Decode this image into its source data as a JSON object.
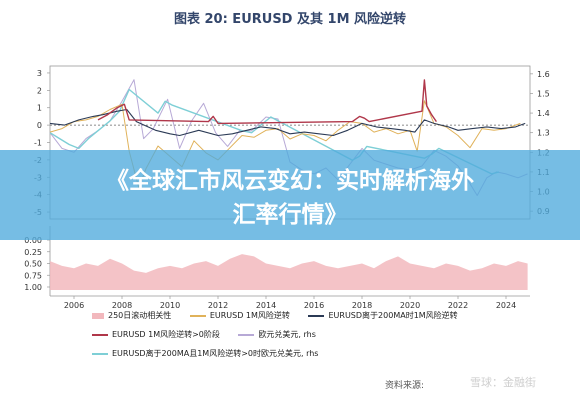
{
  "title": "图表 20: EURUSD 及其 1M 风险逆转",
  "banner": {
    "line1": "《全球汇市风云变幻：实时解析海外",
    "line2": "汇率行情》"
  },
  "legend": [
    {
      "label": "250日滚动相关性",
      "kind": "area",
      "color": "#f2b8bd"
    },
    {
      "label": "EURUSD 1M风险逆转",
      "kind": "line",
      "color": "#e0b25a"
    },
    {
      "label": "EURUSD离于200MA时1M风险逆转",
      "kind": "line",
      "color": "#2b3a55"
    },
    {
      "label": "EURUSD 1M风险逆转>0阶段",
      "kind": "line",
      "color": "#b0374a"
    },
    {
      "label": "欧元兑美元, rhs",
      "kind": "line",
      "color": "#b7a9d6"
    },
    {
      "label": "EURUSD离于200MA且1M风险逆转>0时欧元兑美元, rhs",
      "kind": "line",
      "color": "#7ecfd6"
    }
  ],
  "source": "资料来源:",
  "watermark": "雪球：金融街",
  "chart_data": {
    "type": "line",
    "x_ticks": [
      "2006",
      "2008",
      "2010",
      "2012",
      "2014",
      "2016",
      "2018",
      "2020",
      "2022",
      "2024"
    ],
    "x_range": [
      2005,
      2025
    ],
    "left_axis": {
      "ticks": [
        3,
        2,
        1,
        0,
        -1,
        -2,
        -3,
        -4,
        -5
      ],
      "ylim": [
        -5.4,
        3.4
      ]
    },
    "right_axis": {
      "ticks": [
        1.6,
        1.5,
        1.4,
        1.3,
        1.2,
        1.1,
        1.0,
        0.9
      ],
      "ylim": [
        0.86,
        1.64
      ]
    },
    "lower_axis": {
      "ticks": [
        0.0,
        0.25,
        0.5,
        0.75,
        1.0
      ],
      "ylim": [
        1.0,
        0.0
      ]
    },
    "reference_line": 0,
    "series": [
      {
        "name": "EURUSD 1M风险逆转",
        "axis": "left",
        "x": [
          2005.0,
          2005.5,
          2006.0,
          2006.5,
          2007.0,
          2007.5,
          2008.0,
          2008.3,
          2008.7,
          2009.0,
          2009.5,
          2010.0,
          2010.5,
          2011.0,
          2011.5,
          2012.0,
          2012.5,
          2013.0,
          2013.5,
          2014.0,
          2014.5,
          2015.0,
          2015.5,
          2016.0,
          2016.5,
          2017.0,
          2017.5,
          2018.0,
          2018.5,
          2019.0,
          2019.5,
          2020.0,
          2020.3,
          2020.6,
          2021.0,
          2021.5,
          2022.0,
          2022.5,
          2023.0,
          2023.5,
          2024.0,
          2024.6
        ],
        "y": [
          -0.4,
          -0.2,
          0.2,
          0.3,
          0.5,
          0.9,
          1.2,
          -1.5,
          -3.6,
          -2.5,
          -1.2,
          -1.8,
          -2.4,
          -0.9,
          -1.6,
          -2.0,
          -1.3,
          -0.6,
          -0.7,
          -0.3,
          -0.2,
          -0.8,
          -0.5,
          -0.6,
          -0.9,
          -0.3,
          0.2,
          0.1,
          -0.4,
          -0.2,
          -0.5,
          -0.3,
          -1.5,
          1.4,
          0.1,
          -0.1,
          -0.6,
          -1.3,
          -0.2,
          -0.3,
          -0.2,
          0.1
        ]
      },
      {
        "name": "EURUSD离于200MA时1M风险逆转",
        "axis": "left",
        "x": [
          2005.0,
          2005.6,
          2006.2,
          2006.8,
          2007.2,
          2007.8,
          2008.2,
          2008.6,
          2009.4,
          2010.0,
          2010.4,
          2011.2,
          2012.0,
          2012.6,
          2013.2,
          2013.8,
          2014.4,
          2015.0,
          2015.6,
          2016.2,
          2016.8,
          2017.4,
          2018.0,
          2018.6,
          2019.2,
          2019.8,
          2020.2,
          2020.6,
          2021.0,
          2021.6,
          2022.0,
          2022.6,
          2023.2,
          2023.8,
          2024.4,
          2024.8
        ],
        "y": [
          0.1,
          0.0,
          0.3,
          0.5,
          0.6,
          0.8,
          0.9,
          0.2,
          -0.3,
          -0.5,
          -0.6,
          -0.3,
          -0.6,
          -0.5,
          -0.3,
          -0.1,
          -0.2,
          -0.5,
          -0.4,
          -0.5,
          -0.6,
          -0.3,
          0.1,
          -0.1,
          -0.2,
          -0.3,
          -0.4,
          0.3,
          0.1,
          -0.1,
          -0.3,
          -0.2,
          -0.1,
          -0.2,
          -0.1,
          0.1
        ]
      },
      {
        "name": "EURUSD 1M风险逆转>0阶段",
        "axis": "left",
        "x": [
          2007.0,
          2007.4,
          2007.8,
          2008.1,
          2008.3,
          2011.6,
          2011.8,
          2012.0,
          2017.6,
          2017.9,
          2018.1,
          2018.3,
          2020.5,
          2020.6,
          2020.7,
          2020.9,
          2021.1
        ],
        "y": [
          0.3,
          0.6,
          1.0,
          1.2,
          0.3,
          0.2,
          0.5,
          0.1,
          0.2,
          0.5,
          0.4,
          0.2,
          0.8,
          2.6,
          1.1,
          0.6,
          0.2
        ]
      },
      {
        "name": "欧元兑美元, rhs",
        "axis": "right",
        "x": [
          2005.0,
          2005.5,
          2006.0,
          2006.5,
          2007.0,
          2007.5,
          2008.0,
          2008.5,
          2008.9,
          2009.3,
          2009.9,
          2010.4,
          2010.9,
          2011.4,
          2011.9,
          2012.4,
          2012.9,
          2013.4,
          2014.0,
          2014.5,
          2015.0,
          2015.5,
          2016.0,
          2016.5,
          2017.0,
          2017.5,
          2018.0,
          2018.5,
          2019.0,
          2019.5,
          2020.0,
          2020.5,
          2021.0,
          2021.5,
          2022.0,
          2022.5,
          2022.8,
          2023.2,
          2023.6,
          2024.0,
          2024.5,
          2024.9
        ],
        "y": [
          1.3,
          1.22,
          1.2,
          1.27,
          1.31,
          1.36,
          1.46,
          1.57,
          1.27,
          1.32,
          1.47,
          1.22,
          1.36,
          1.45,
          1.3,
          1.23,
          1.31,
          1.31,
          1.38,
          1.37,
          1.15,
          1.11,
          1.09,
          1.12,
          1.06,
          1.14,
          1.22,
          1.16,
          1.14,
          1.12,
          1.11,
          1.13,
          1.21,
          1.18,
          1.13,
          1.04,
          0.98,
          1.07,
          1.1,
          1.09,
          1.07,
          1.09
        ]
      },
      {
        "name": "EURUSD离于200MA且1M风险逆转>0时欧元兑美元, rhs",
        "axis": "right",
        "x": [
          2005.0,
          2005.4,
          2005.8,
          2006.2,
          2006.6,
          2007.0,
          2007.5,
          2007.9,
          2008.3,
          2009.5,
          2009.8,
          2010.1,
          2013.0,
          2013.4,
          2013.8,
          2014.2,
          2017.6,
          2017.9,
          2018.2,
          2020.6,
          2020.9,
          2021.2,
          2023.4,
          2023.7
        ],
        "y": [
          1.3,
          1.27,
          1.24,
          1.22,
          1.27,
          1.31,
          1.36,
          1.41,
          1.52,
          1.4,
          1.46,
          1.44,
          1.31,
          1.3,
          1.34,
          1.38,
          1.16,
          1.18,
          1.23,
          1.17,
          1.19,
          1.22,
          1.09,
          1.1
        ]
      }
    ],
    "area_series": {
      "name": "250日滚动相关性",
      "axis": "lower",
      "x": [
        2005.0,
        2005.5,
        2006.0,
        2006.5,
        2007.0,
        2007.5,
        2008.0,
        2008.5,
        2009.0,
        2009.5,
        2010.0,
        2010.5,
        2011.0,
        2011.5,
        2012.0,
        2012.5,
        2013.0,
        2013.5,
        2014.0,
        2014.5,
        2015.0,
        2015.5,
        2016.0,
        2016.5,
        2017.0,
        2017.5,
        2018.0,
        2018.5,
        2019.0,
        2019.5,
        2020.0,
        2020.5,
        2021.0,
        2021.5,
        2022.0,
        2022.5,
        2023.0,
        2023.5,
        2024.0,
        2024.5,
        2024.9
      ],
      "y": [
        0.45,
        0.55,
        0.6,
        0.5,
        0.55,
        0.4,
        0.5,
        0.65,
        0.7,
        0.6,
        0.55,
        0.6,
        0.5,
        0.45,
        0.55,
        0.4,
        0.3,
        0.35,
        0.5,
        0.55,
        0.6,
        0.5,
        0.45,
        0.55,
        0.6,
        0.55,
        0.5,
        0.6,
        0.45,
        0.35,
        0.5,
        0.55,
        0.6,
        0.5,
        0.55,
        0.65,
        0.6,
        0.5,
        0.55,
        0.45,
        0.5
      ]
    }
  }
}
